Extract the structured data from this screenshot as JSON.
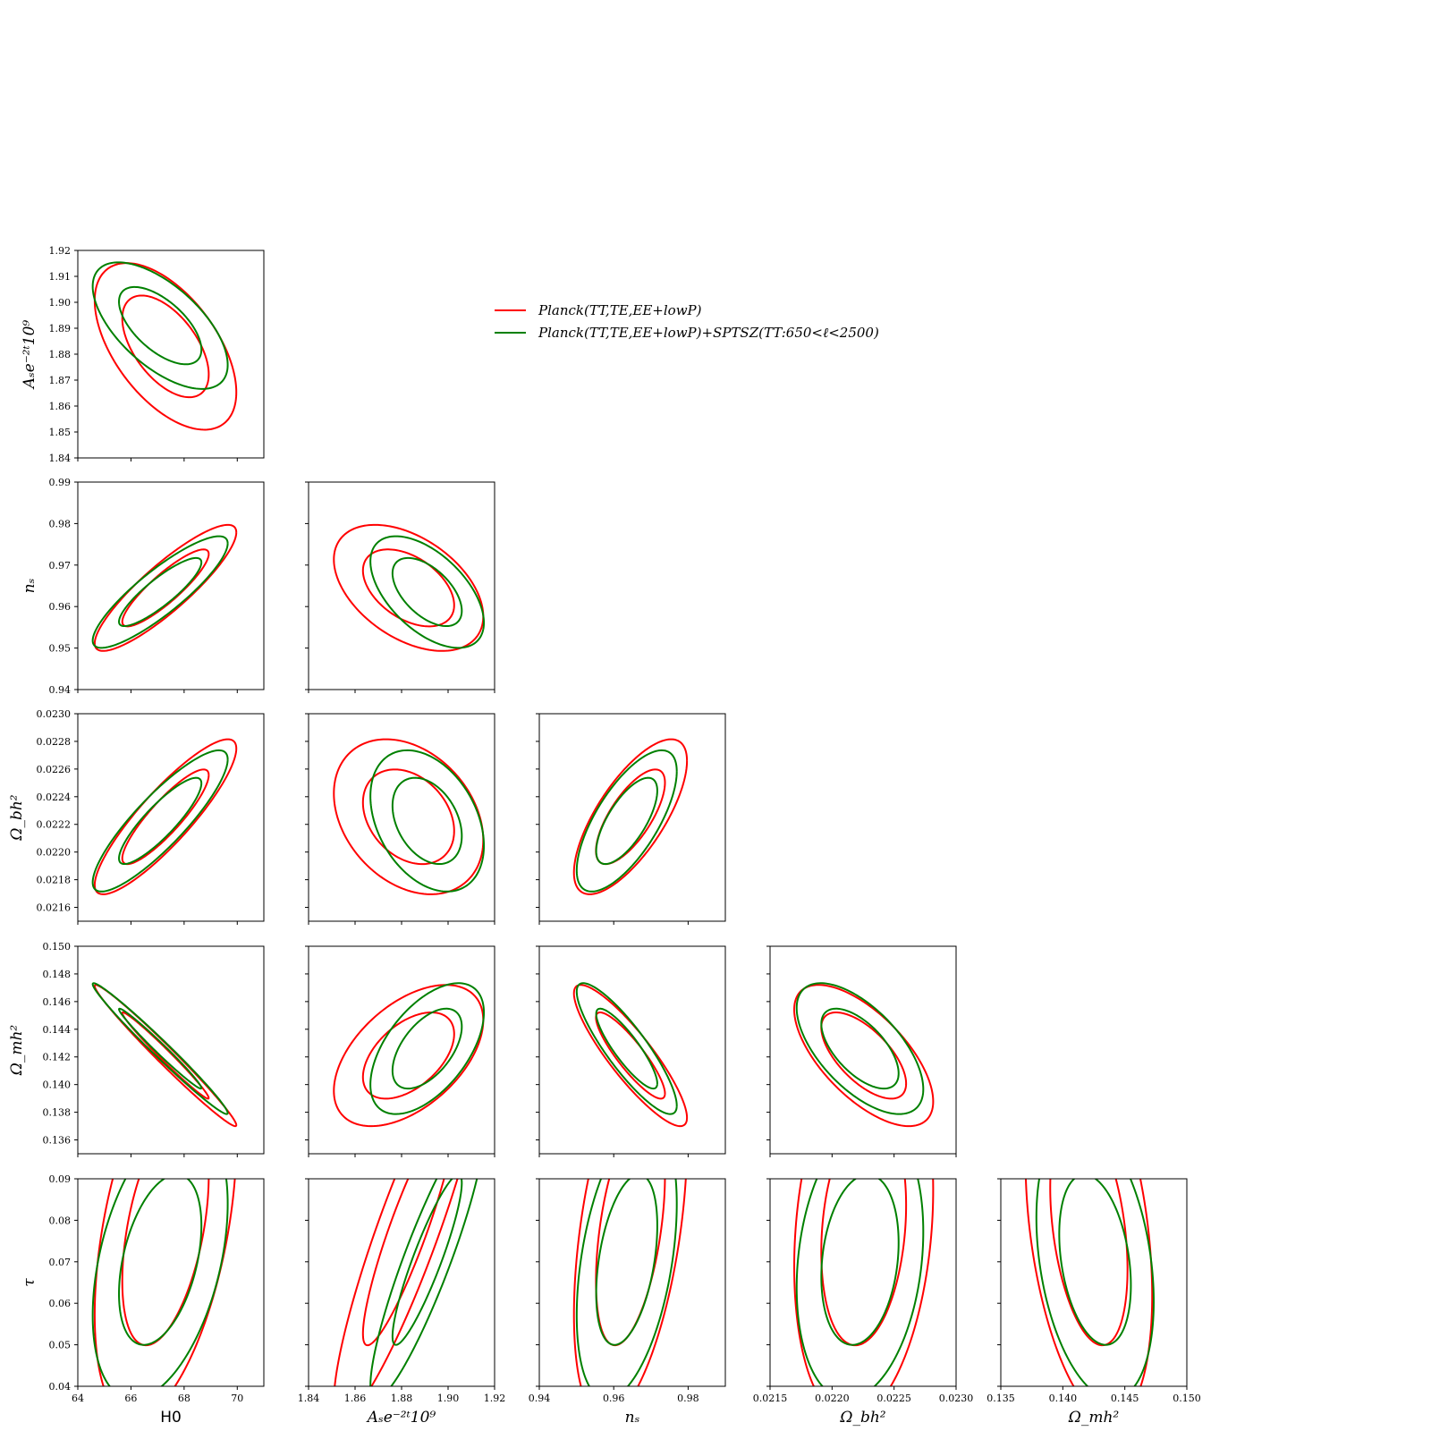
{
  "chart_data": {
    "type": "triangle-contour",
    "params": [
      {
        "key": "H0",
        "label": "H0",
        "italic": false,
        "range": [
          64,
          71
        ],
        "ticks": [
          64,
          66,
          68,
          70
        ],
        "tick_labels": [
          "64",
          "66",
          "68",
          "70"
        ]
      },
      {
        "key": "As",
        "label": "Aₛe⁻²ᵗ10⁹",
        "italic": true,
        "range": [
          1.84,
          1.92
        ],
        "ticks": [
          1.84,
          1.85,
          1.86,
          1.87,
          1.88,
          1.89,
          1.9,
          1.91,
          1.92
        ],
        "tick_labels": [
          "1.84",
          "1.85",
          "1.86",
          "1.87",
          "1.88",
          "1.89",
          "1.90",
          "1.91",
          "1.92"
        ],
        "x_ticks": [
          1.84,
          1.86,
          1.88,
          1.9,
          1.92
        ],
        "x_tick_labels": [
          "1.84",
          "1.86",
          "1.88",
          "1.90",
          "1.92"
        ]
      },
      {
        "key": "ns",
        "label": "nₛ",
        "italic": true,
        "range": [
          0.94,
          0.99
        ],
        "ticks": [
          0.94,
          0.95,
          0.96,
          0.97,
          0.98,
          0.99
        ],
        "tick_labels": [
          "0.94",
          "0.95",
          "0.96",
          "0.97",
          "0.98",
          "0.99"
        ],
        "x_ticks": [
          0.94,
          0.96,
          0.98
        ],
        "x_tick_labels": [
          "0.94",
          "0.96",
          "0.98"
        ]
      },
      {
        "key": "Ombh2",
        "label": "Ω_bh²",
        "italic": true,
        "range": [
          0.0215,
          0.023
        ],
        "ticks": [
          0.0216,
          0.0218,
          0.022,
          0.0222,
          0.0224,
          0.0226,
          0.0228,
          0.023
        ],
        "tick_labels": [
          "0.0216",
          "0.0218",
          "0.0220",
          "0.0222",
          "0.0224",
          "0.0226",
          "0.0228",
          "0.0230"
        ],
        "x_ticks": [
          0.0215,
          0.022,
          0.0225,
          0.023
        ],
        "x_tick_labels": [
          "0.0215",
          "0.0220",
          "0.0225",
          "0.0230"
        ]
      },
      {
        "key": "Omh2",
        "label": "Ω_mh²",
        "italic": true,
        "range": [
          0.135,
          0.15
        ],
        "ticks": [
          0.136,
          0.138,
          0.14,
          0.142,
          0.144,
          0.146,
          0.148,
          0.15
        ],
        "tick_labels": [
          "0.136",
          "0.138",
          "0.140",
          "0.142",
          "0.144",
          "0.146",
          "0.148",
          "0.150"
        ],
        "x_ticks": [
          0.135,
          0.14,
          0.145,
          0.15
        ],
        "x_tick_labels": [
          "0.135",
          "0.140",
          "0.145",
          "0.150"
        ]
      },
      {
        "key": "tau",
        "label": "τ",
        "italic": true,
        "range": [
          0.04,
          0.09
        ],
        "ticks": [
          0.04,
          0.05,
          0.06,
          0.07,
          0.08,
          0.09
        ],
        "tick_labels": [
          "0.04",
          "0.05",
          "0.06",
          "0.07",
          "0.08",
          "0.09"
        ]
      }
    ],
    "series": [
      {
        "name": "Planck(TT,TE,EE+lowP)",
        "color": "#ff0000"
      },
      {
        "name": "Planck(TT,TE,EE+lowP)+SPTSZ(TT:650<ℓ<2500)",
        "color": "#008000"
      }
    ],
    "legend_placement": "upper-center",
    "grid": false,
    "contours": [
      {
        "row": 1,
        "col": 0,
        "series": 0,
        "center": [
          67.3,
          1.883
        ],
        "sx": 1.07,
        "sy": 0.0129,
        "rho": -0.55
      },
      {
        "row": 1,
        "col": 0,
        "series": 1,
        "center": [
          67.1,
          1.891
        ],
        "sx": 1.02,
        "sy": 0.0098,
        "rho": -0.62
      },
      {
        "row": 2,
        "col": 0,
        "series": 0,
        "center": [
          67.3,
          0.9645
        ],
        "sx": 1.07,
        "sy": 0.0061,
        "rho": 0.88
      },
      {
        "row": 2,
        "col": 0,
        "series": 1,
        "center": [
          67.1,
          0.9635
        ],
        "sx": 1.02,
        "sy": 0.0054,
        "rho": 0.87
      },
      {
        "row": 2,
        "col": 1,
        "series": 0,
        "center": [
          1.883,
          0.9645
        ],
        "sx": 0.0129,
        "sy": 0.0061,
        "rho": -0.45
      },
      {
        "row": 2,
        "col": 1,
        "series": 1,
        "center": [
          1.891,
          0.9635
        ],
        "sx": 0.0098,
        "sy": 0.0054,
        "rho": -0.55
      },
      {
        "row": 3,
        "col": 0,
        "series": 0,
        "center": [
          67.3,
          0.022255
        ],
        "sx": 1.07,
        "sy": 0.000225,
        "rho": 0.88
      },
      {
        "row": 3,
        "col": 0,
        "series": 1,
        "center": [
          67.1,
          0.022225
        ],
        "sx": 1.02,
        "sy": 0.000205,
        "rho": 0.87
      },
      {
        "row": 3,
        "col": 1,
        "series": 0,
        "center": [
          1.883,
          0.022255
        ],
        "sx": 0.0129,
        "sy": 0.000225,
        "rho": -0.3
      },
      {
        "row": 3,
        "col": 1,
        "series": 1,
        "center": [
          1.891,
          0.022225
        ],
        "sx": 0.0098,
        "sy": 0.000205,
        "rho": -0.35
      },
      {
        "row": 3,
        "col": 2,
        "series": 0,
        "center": [
          0.9645,
          0.022255
        ],
        "sx": 0.0061,
        "sy": 0.000225,
        "rho": 0.72
      },
      {
        "row": 3,
        "col": 2,
        "series": 1,
        "center": [
          0.9635,
          0.022225
        ],
        "sx": 0.0054,
        "sy": 0.000205,
        "rho": 0.7
      },
      {
        "row": 4,
        "col": 0,
        "series": 0,
        "center": [
          67.3,
          0.1421
        ],
        "sx": 1.07,
        "sy": 0.00205,
        "rho": -0.985
      },
      {
        "row": 4,
        "col": 0,
        "series": 1,
        "center": [
          67.1,
          0.1426
        ],
        "sx": 1.02,
        "sy": 0.0019,
        "rho": -0.985
      },
      {
        "row": 4,
        "col": 1,
        "series": 0,
        "center": [
          1.883,
          0.1421
        ],
        "sx": 0.0129,
        "sy": 0.00205,
        "rho": 0.5
      },
      {
        "row": 4,
        "col": 1,
        "series": 1,
        "center": [
          1.891,
          0.1426
        ],
        "sx": 0.0098,
        "sy": 0.0019,
        "rho": 0.55
      },
      {
        "row": 4,
        "col": 2,
        "series": 0,
        "center": [
          0.9645,
          0.1421
        ],
        "sx": 0.0061,
        "sy": 0.00205,
        "rho": -0.88
      },
      {
        "row": 4,
        "col": 2,
        "series": 1,
        "center": [
          0.9635,
          0.1426
        ],
        "sx": 0.0054,
        "sy": 0.0019,
        "rho": -0.87
      },
      {
        "row": 4,
        "col": 3,
        "series": 0,
        "center": [
          0.022255,
          0.1421
        ],
        "sx": 0.000225,
        "sy": 0.00205,
        "rho": -0.65
      },
      {
        "row": 4,
        "col": 3,
        "series": 1,
        "center": [
          0.022225,
          0.1426
        ],
        "sx": 0.000205,
        "sy": 0.0019,
        "rho": -0.62
      },
      {
        "row": 5,
        "col": 0,
        "series": 0,
        "center": [
          67.3,
          0.078
        ],
        "sx": 1.07,
        "sy": 0.0185,
        "rho": 0.45
      },
      {
        "row": 5,
        "col": 0,
        "series": 1,
        "center": [
          67.1,
          0.0705
        ],
        "sx": 1.02,
        "sy": 0.0135,
        "rho": 0.4
      },
      {
        "row": 5,
        "col": 1,
        "series": 0,
        "center": [
          1.883,
          0.078
        ],
        "sx": 0.0129,
        "sy": 0.0185,
        "rho": 0.9
      },
      {
        "row": 5,
        "col": 1,
        "series": 1,
        "center": [
          1.891,
          0.0705
        ],
        "sx": 0.0098,
        "sy": 0.0135,
        "rho": 0.9
      },
      {
        "row": 5,
        "col": 2,
        "series": 0,
        "center": [
          0.9645,
          0.078
        ],
        "sx": 0.0061,
        "sy": 0.0185,
        "rho": 0.45
      },
      {
        "row": 5,
        "col": 2,
        "series": 1,
        "center": [
          0.9635,
          0.0705
        ],
        "sx": 0.0054,
        "sy": 0.0135,
        "rho": 0.4
      },
      {
        "row": 5,
        "col": 3,
        "series": 0,
        "center": [
          0.022255,
          0.078
        ],
        "sx": 0.000225,
        "sy": 0.0185,
        "rho": 0.2
      },
      {
        "row": 5,
        "col": 3,
        "series": 1,
        "center": [
          0.022225,
          0.0705
        ],
        "sx": 0.000205,
        "sy": 0.0135,
        "rho": 0.2
      },
      {
        "row": 5,
        "col": 4,
        "series": 0,
        "center": [
          0.1421,
          0.078
        ],
        "sx": 0.00205,
        "sy": 0.0185,
        "rho": -0.35
      },
      {
        "row": 5,
        "col": 4,
        "series": 1,
        "center": [
          0.1426,
          0.0705
        ],
        "sx": 0.0019,
        "sy": 0.0135,
        "rho": -0.3
      }
    ],
    "contour_levels": [
      1.52,
      2.49
    ]
  }
}
